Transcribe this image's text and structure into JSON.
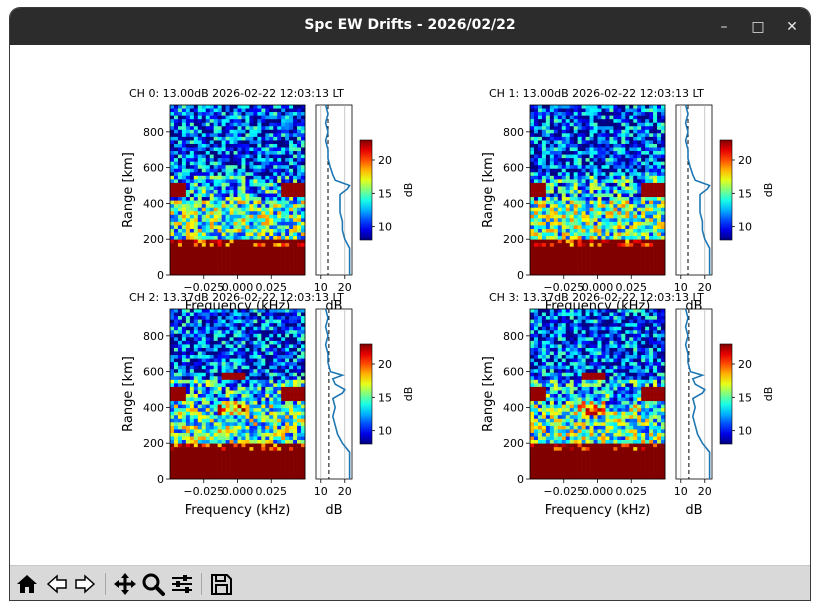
{
  "window": {
    "title": "Spc EW Drifts - 2026/02/22",
    "minimize_icon": "minimize-icon",
    "maximize_icon": "maximize-icon",
    "close_icon": "close-icon"
  },
  "panels": [
    {
      "title": "CH 0: 13.00dB 2026-02-22 12:03:13 LT",
      "noise_db": 13.0
    },
    {
      "title": "CH 1: 13.00dB 2026-02-22 12:03:13 LT",
      "noise_db": 13.0
    },
    {
      "title": "CH 2: 13.37dB 2026-02-22 12:03:13 LT",
      "noise_db": 13.37
    },
    {
      "title": "CH 3: 13.37dB 2026-02-22 12:03:13 LT",
      "noise_db": 13.37
    }
  ],
  "axes": {
    "spectrum_xlabel": "Frequency (kHz)",
    "spectrum_ylabel": "Range [km]",
    "profile_xlabel": "dB",
    "colorbar_label": "dB",
    "range_ticks": [
      "0",
      "200",
      "400",
      "600",
      "800"
    ],
    "freq_ticks": [
      "−0.025",
      "0.000",
      "0.025"
    ],
    "profile_ticks": [
      "10",
      "20"
    ],
    "colorbar_ticks": [
      "20",
      "15",
      "10"
    ]
  },
  "chart_data": [
    {
      "type": "heatmap",
      "title": "CH 0: 13.00dB 2026-02-22 12:03:13 LT",
      "xlabel": "Frequency (kHz)",
      "ylabel": "Range [km]",
      "xlim": [
        -0.05,
        0.05
      ],
      "ylim": [
        0,
        950
      ],
      "colorbar": {
        "label": "dB",
        "range": [
          8,
          23
        ],
        "ticks": [
          10,
          15,
          20
        ],
        "colormap": "jet"
      },
      "profile": {
        "xlabel": "dB",
        "xlim": [
          8,
          23
        ],
        "noise_db": 13.0,
        "range_km": [
          0,
          50,
          100,
          150,
          200,
          250,
          300,
          350,
          400,
          450,
          480,
          500,
          530,
          560,
          600,
          650,
          700,
          750,
          800,
          850,
          900,
          950
        ],
        "db": [
          22,
          22,
          22,
          22,
          20,
          19,
          19,
          18,
          18,
          18,
          21,
          22,
          16,
          15,
          14,
          13,
          13,
          12,
          13,
          12,
          13,
          12
        ]
      }
    },
    {
      "type": "heatmap",
      "title": "CH 1: 13.00dB 2026-02-22 12:03:13 LT",
      "xlabel": "Frequency (kHz)",
      "ylabel": "Range [km]",
      "xlim": [
        -0.05,
        0.05
      ],
      "ylim": [
        0,
        950
      ],
      "colorbar": {
        "label": "dB",
        "range": [
          8,
          23
        ],
        "ticks": [
          10,
          15,
          20
        ],
        "colormap": "jet"
      },
      "profile": {
        "xlabel": "dB",
        "xlim": [
          8,
          23
        ],
        "noise_db": 13.0,
        "range_km": [
          0,
          50,
          100,
          150,
          200,
          250,
          300,
          350,
          400,
          450,
          480,
          500,
          530,
          560,
          600,
          650,
          700,
          750,
          800,
          850,
          900,
          950
        ],
        "db": [
          22,
          22,
          22,
          22,
          20,
          19,
          19,
          18,
          18,
          18,
          21,
          22,
          16,
          15,
          14,
          13,
          13,
          12,
          13,
          12,
          13,
          12
        ]
      }
    },
    {
      "type": "heatmap",
      "title": "CH 2: 13.37dB 2026-02-22 12:03:13 LT",
      "xlabel": "Frequency (kHz)",
      "ylabel": "Range [km]",
      "xlim": [
        -0.05,
        0.05
      ],
      "ylim": [
        0,
        950
      ],
      "colorbar": {
        "label": "dB",
        "range": [
          8,
          23
        ],
        "ticks": [
          10,
          15,
          20
        ],
        "colormap": "jet"
      },
      "profile": {
        "xlabel": "dB",
        "xlim": [
          8,
          23
        ],
        "noise_db": 13.37,
        "range_km": [
          0,
          50,
          100,
          150,
          200,
          250,
          300,
          350,
          400,
          450,
          480,
          500,
          530,
          560,
          580,
          600,
          650,
          700,
          750,
          800,
          850,
          900,
          950
        ],
        "db": [
          22,
          22,
          22,
          22,
          19,
          17,
          16,
          15,
          16,
          15,
          19,
          20,
          16,
          15,
          19,
          14,
          13,
          13,
          12,
          13,
          12,
          13,
          12
        ]
      }
    },
    {
      "type": "heatmap",
      "title": "CH 3: 13.37dB 2026-02-22 12:03:13 LT",
      "xlabel": "Frequency (kHz)",
      "ylabel": "Range [km]",
      "xlim": [
        -0.05,
        0.05
      ],
      "ylim": [
        0,
        950
      ],
      "colorbar": {
        "label": "dB",
        "range": [
          8,
          23
        ],
        "ticks": [
          10,
          15,
          20
        ],
        "colormap": "jet"
      },
      "profile": {
        "xlabel": "dB",
        "xlim": [
          8,
          23
        ],
        "noise_db": 13.37,
        "range_km": [
          0,
          50,
          100,
          150,
          200,
          250,
          300,
          350,
          400,
          450,
          480,
          500,
          530,
          560,
          580,
          600,
          650,
          700,
          750,
          800,
          850,
          900,
          950
        ],
        "db": [
          22,
          22,
          22,
          22,
          19,
          17,
          16,
          15,
          16,
          15,
          19,
          20,
          16,
          15,
          19,
          14,
          13,
          13,
          12,
          13,
          12,
          13,
          12
        ]
      }
    }
  ],
  "toolbar": {
    "items": [
      "home-icon",
      "back-arrow-icon",
      "forward-arrow-icon",
      "pan-move-icon",
      "zoom-magnifier-icon",
      "configure-subplots-icon",
      "save-figure-icon"
    ]
  }
}
